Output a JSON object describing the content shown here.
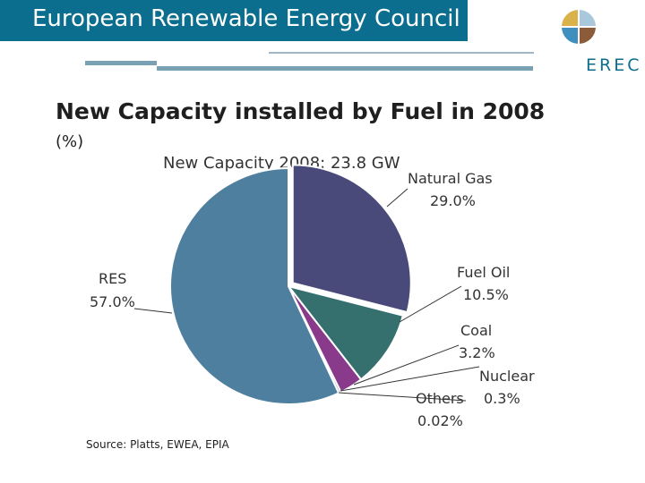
{
  "header": {
    "title": "European Renewable Energy Council",
    "logo_text": "EREC",
    "bar_color": "#0b6e8e"
  },
  "slide": {
    "title": "New Capacity installed by Fuel in 2008",
    "unit": "(%)",
    "source": "Source: Platts, EWEA, EPIA"
  },
  "chart_data": {
    "type": "pie",
    "title": "New Capacity 2008: 23.8 GW",
    "slices": [
      {
        "name": "Natural Gas",
        "value": 29.0,
        "label": "29.0%",
        "color": "#4a4a7a"
      },
      {
        "name": "Fuel Oil",
        "value": 10.5,
        "label": "10.5%",
        "color": "#35706f"
      },
      {
        "name": "Coal",
        "value": 3.2,
        "label": "3.2%",
        "color": "#8a3a8a"
      },
      {
        "name": "Nuclear",
        "value": 0.3,
        "label": "0.3%",
        "color": "#6d6d8c"
      },
      {
        "name": "Others",
        "value": 0.02,
        "label": "0.02%",
        "color": "#8aa9bd"
      },
      {
        "name": "RES",
        "value": 57.0,
        "label": "57.0%",
        "color": "#4f7f9e"
      }
    ]
  }
}
